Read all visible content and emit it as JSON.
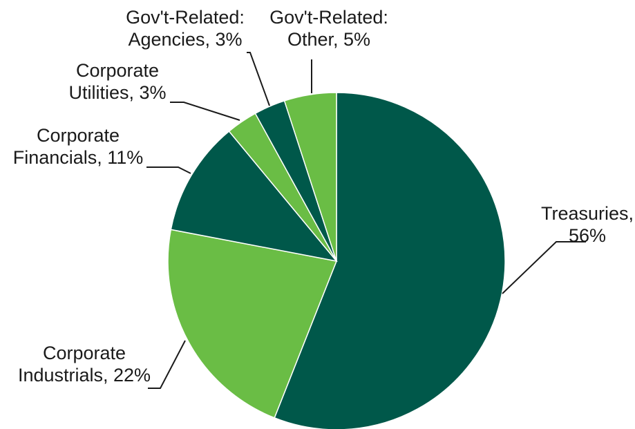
{
  "chart_data": {
    "type": "pie",
    "title": "",
    "colors": {
      "dark_green": "#00584A",
      "light_green": "#6ABD45"
    },
    "slices": [
      {
        "label_lines": [
          "Treasuries,",
          "56%"
        ],
        "category": "Treasuries",
        "value": 56,
        "color": "#00584A"
      },
      {
        "label_lines": [
          "Corporate",
          "Industrials, 22%"
        ],
        "category": "Corporate Industrials",
        "value": 22,
        "color": "#6ABD45"
      },
      {
        "label_lines": [
          "Corporate",
          "Financials, 11%"
        ],
        "category": "Corporate Financials",
        "value": 11,
        "color": "#00584A"
      },
      {
        "label_lines": [
          "Corporate",
          "Utilities, 3%"
        ],
        "category": "Corporate Utilities",
        "value": 3,
        "color": "#6ABD45"
      },
      {
        "label_lines": [
          "Gov't-Related:",
          "Agencies, 3%"
        ],
        "category": "Gov't-Related: Agencies",
        "value": 3,
        "color": "#00584A"
      },
      {
        "label_lines": [
          "Gov't-Related:",
          "Other, 5%"
        ],
        "category": "Gov't-Related: Other",
        "value": 5,
        "color": "#6ABD45"
      }
    ]
  }
}
